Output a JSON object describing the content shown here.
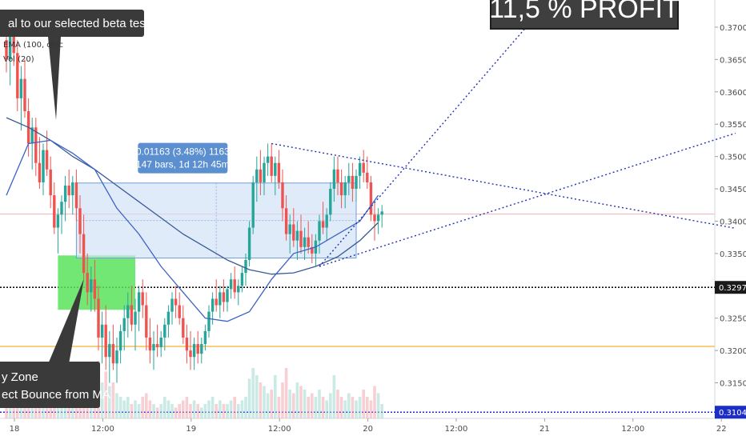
{
  "chart_data": {
    "type": "candlestick",
    "header": {
      "indicator_1": "EMA (100, ohlc",
      "indicator_2": "Vol (20)"
    },
    "y_axis": {
      "ylim": [
        0.3095,
        0.3742
      ],
      "ticks": [
        "0.37000",
        "0.36500",
        "0.36000",
        "0.35500",
        "0.35000",
        "0.34500",
        "0.34000",
        "0.33500",
        "0.32500",
        "0.32000",
        "0.31500"
      ],
      "price_labels": [
        {
          "value": 0.32976,
          "text": "0.32976"
        },
        {
          "value": 0.31046,
          "text": "0.31046"
        }
      ]
    },
    "x_axis": {
      "ticks": [
        "18",
        "12:00",
        "19",
        "12:00",
        "20",
        "12:00",
        "21",
        "12:00",
        "22"
      ],
      "tick_bars": [
        0,
        24,
        48,
        72,
        96,
        120,
        144,
        168,
        192
      ]
    },
    "horizontal_levels": [
      {
        "value": 0.32976,
        "style": "dotted",
        "color": "#111111"
      },
      {
        "value": 0.32063,
        "style": "solid",
        "color": "#f5b335"
      },
      {
        "value": 0.31046,
        "style": "dotted",
        "color": "#1c2ec8"
      },
      {
        "value": 0.3411,
        "style": "solid",
        "color": "#f4b8bf"
      }
    ],
    "measure_box": {
      "line1": "0.01163 (3.48%) 1163",
      "line2": "147 bars, 1d 12h 45m",
      "from_price": 0.3343,
      "to_price": 0.3459,
      "from_bar": 19,
      "to_bar": 95
    },
    "buy_zone": {
      "from_price": 0.3263,
      "to_price": 0.3347,
      "from_bar": 14,
      "to_bar": 35
    },
    "callouts": [
      {
        "text": "al to our selected beta testers",
        "style": "dark"
      },
      {
        "text_1": "y Zone",
        "text_2": "ect Bounce from MA",
        "style": "dark"
      },
      {
        "text": "11,5 % PROFIT",
        "style": "dark-large"
      }
    ],
    "trendlines": [
      {
        "p1": [
          72,
          0.352
        ],
        "p2": [
          198,
          0.3389
        ],
        "color": "#2333b4"
      },
      {
        "p1": [
          85,
          0.333
        ],
        "p2": [
          198,
          0.3536
        ],
        "color": "#2333b4"
      },
      {
        "p1": [
          85,
          0.333
        ],
        "p2": [
          148,
          0.3745
        ],
        "color": "#2333b4"
      }
    ],
    "ohlc": [
      [
        0.368,
        0.371,
        0.363,
        0.365
      ],
      [
        0.365,
        0.37,
        0.361,
        0.369
      ],
      [
        0.369,
        0.372,
        0.364,
        0.366
      ],
      [
        0.366,
        0.368,
        0.357,
        0.359
      ],
      [
        0.359,
        0.364,
        0.354,
        0.362
      ],
      [
        0.362,
        0.365,
        0.356,
        0.357
      ],
      [
        0.357,
        0.359,
        0.35,
        0.352
      ],
      [
        0.352,
        0.356,
        0.348,
        0.3545
      ],
      [
        0.3545,
        0.356,
        0.347,
        0.349
      ],
      [
        0.349,
        0.353,
        0.345,
        0.346
      ],
      [
        0.346,
        0.352,
        0.344,
        0.351
      ],
      [
        0.351,
        0.354,
        0.347,
        0.348
      ],
      [
        0.348,
        0.35,
        0.342,
        0.344
      ],
      [
        0.344,
        0.346,
        0.338,
        0.339
      ],
      [
        0.339,
        0.342,
        0.335,
        0.341
      ],
      [
        0.341,
        0.344,
        0.338,
        0.343
      ],
      [
        0.343,
        0.347,
        0.34,
        0.3455
      ],
      [
        0.3455,
        0.348,
        0.342,
        0.344
      ],
      [
        0.344,
        0.347,
        0.341,
        0.346
      ],
      [
        0.346,
        0.348,
        0.34,
        0.342
      ],
      [
        0.342,
        0.344,
        0.335,
        0.338
      ],
      [
        0.338,
        0.341,
        0.331,
        0.332
      ],
      [
        0.332,
        0.335,
        0.327,
        0.329
      ],
      [
        0.329,
        0.333,
        0.326,
        0.331
      ],
      [
        0.331,
        0.334,
        0.326,
        0.328
      ],
      [
        0.328,
        0.33,
        0.32,
        0.322
      ],
      [
        0.322,
        0.326,
        0.318,
        0.324
      ],
      [
        0.324,
        0.327,
        0.317,
        0.319
      ],
      [
        0.319,
        0.323,
        0.315,
        0.321
      ],
      [
        0.321,
        0.324,
        0.317,
        0.318
      ],
      [
        0.318,
        0.322,
        0.315,
        0.32
      ],
      [
        0.32,
        0.324,
        0.318,
        0.323
      ],
      [
        0.323,
        0.327,
        0.32,
        0.325
      ],
      [
        0.325,
        0.329,
        0.322,
        0.327
      ],
      [
        0.327,
        0.33,
        0.323,
        0.324
      ],
      [
        0.324,
        0.328,
        0.32,
        0.326
      ],
      [
        0.326,
        0.33,
        0.323,
        0.329
      ],
      [
        0.329,
        0.331,
        0.325,
        0.327
      ],
      [
        0.327,
        0.329,
        0.32,
        0.322
      ],
      [
        0.322,
        0.325,
        0.318,
        0.32
      ],
      [
        0.32,
        0.323,
        0.317,
        0.321
      ],
      [
        0.321,
        0.324,
        0.319,
        0.3205
      ],
      [
        0.3205,
        0.323,
        0.319,
        0.322
      ],
      [
        0.322,
        0.325,
        0.32,
        0.324
      ],
      [
        0.324,
        0.327,
        0.322,
        0.326
      ],
      [
        0.326,
        0.329,
        0.324,
        0.328
      ],
      [
        0.328,
        0.33,
        0.325,
        0.327
      ],
      [
        0.327,
        0.329,
        0.324,
        0.325
      ],
      [
        0.325,
        0.327,
        0.321,
        0.322
      ],
      [
        0.322,
        0.324,
        0.318,
        0.32
      ],
      [
        0.32,
        0.323,
        0.317,
        0.319
      ],
      [
        0.319,
        0.322,
        0.317,
        0.321
      ],
      [
        0.321,
        0.323,
        0.318,
        0.3195
      ],
      [
        0.3195,
        0.322,
        0.318,
        0.321
      ],
      [
        0.321,
        0.324,
        0.32,
        0.323
      ],
      [
        0.323,
        0.327,
        0.322,
        0.326
      ],
      [
        0.326,
        0.329,
        0.324,
        0.328
      ],
      [
        0.328,
        0.331,
        0.326,
        0.327
      ],
      [
        0.327,
        0.33,
        0.325,
        0.329
      ],
      [
        0.329,
        0.331,
        0.326,
        0.3275
      ],
      [
        0.3275,
        0.33,
        0.326,
        0.3295
      ],
      [
        0.3295,
        0.332,
        0.328,
        0.331
      ],
      [
        0.331,
        0.333,
        0.328,
        0.329
      ],
      [
        0.329,
        0.331,
        0.327,
        0.33
      ],
      [
        0.33,
        0.333,
        0.329,
        0.332
      ],
      [
        0.332,
        0.335,
        0.33,
        0.334
      ],
      [
        0.334,
        0.34,
        0.333,
        0.339
      ],
      [
        0.339,
        0.347,
        0.338,
        0.346
      ],
      [
        0.346,
        0.35,
        0.343,
        0.348
      ],
      [
        0.348,
        0.351,
        0.344,
        0.346
      ],
      [
        0.346,
        0.35,
        0.344,
        0.349
      ],
      [
        0.349,
        0.352,
        0.347,
        0.35
      ],
      [
        0.35,
        0.352,
        0.346,
        0.347
      ],
      [
        0.347,
        0.35,
        0.344,
        0.349
      ],
      [
        0.349,
        0.351,
        0.345,
        0.346
      ],
      [
        0.346,
        0.348,
        0.34,
        0.342
      ],
      [
        0.342,
        0.344,
        0.337,
        0.338
      ],
      [
        0.338,
        0.341,
        0.335,
        0.3395
      ],
      [
        0.3395,
        0.342,
        0.336,
        0.337
      ],
      [
        0.337,
        0.34,
        0.334,
        0.3385
      ],
      [
        0.3385,
        0.341,
        0.335,
        0.336
      ],
      [
        0.336,
        0.339,
        0.334,
        0.3375
      ],
      [
        0.3375,
        0.34,
        0.335,
        0.336
      ],
      [
        0.336,
        0.338,
        0.3335,
        0.335
      ],
      [
        0.335,
        0.338,
        0.333,
        0.337
      ],
      [
        0.337,
        0.341,
        0.335,
        0.34
      ],
      [
        0.34,
        0.343,
        0.338,
        0.339
      ],
      [
        0.339,
        0.342,
        0.337,
        0.341
      ],
      [
        0.341,
        0.346,
        0.34,
        0.345
      ],
      [
        0.345,
        0.35,
        0.343,
        0.348
      ],
      [
        0.348,
        0.35,
        0.344,
        0.346
      ],
      [
        0.346,
        0.348,
        0.342,
        0.344
      ],
      [
        0.344,
        0.347,
        0.342,
        0.346
      ],
      [
        0.346,
        0.349,
        0.344,
        0.347
      ],
      [
        0.347,
        0.349,
        0.343,
        0.345
      ],
      [
        0.345,
        0.348,
        0.343,
        0.347
      ],
      [
        0.347,
        0.35,
        0.345,
        0.349
      ],
      [
        0.349,
        0.351,
        0.346,
        0.3475
      ],
      [
        0.3475,
        0.35,
        0.345,
        0.346
      ],
      [
        0.346,
        0.347,
        0.34,
        0.341
      ],
      [
        0.341,
        0.343,
        0.337,
        0.34
      ],
      [
        0.34,
        0.342,
        0.338,
        0.341
      ],
      [
        0.341,
        0.3425,
        0.339,
        0.3415
      ]
    ],
    "ema_100": [
      [
        0,
        0.356
      ],
      [
        6,
        0.3545
      ],
      [
        12,
        0.3525
      ],
      [
        18,
        0.35
      ],
      [
        24,
        0.348
      ],
      [
        30,
        0.3455
      ],
      [
        36,
        0.343
      ],
      [
        42,
        0.3405
      ],
      [
        48,
        0.338
      ],
      [
        54,
        0.336
      ],
      [
        60,
        0.334
      ],
      [
        66,
        0.3325
      ],
      [
        72,
        0.3318
      ],
      [
        78,
        0.332
      ],
      [
        84,
        0.333
      ],
      [
        90,
        0.3345
      ],
      [
        96,
        0.337
      ],
      [
        101,
        0.3398
      ]
    ],
    "ma_2": [
      [
        0,
        0.344
      ],
      [
        6,
        0.352
      ],
      [
        12,
        0.3525
      ],
      [
        18,
        0.3505
      ],
      [
        24,
        0.348
      ],
      [
        30,
        0.342
      ],
      [
        36,
        0.338
      ],
      [
        42,
        0.333
      ],
      [
        48,
        0.329
      ],
      [
        54,
        0.325
      ],
      [
        60,
        0.3245
      ],
      [
        66,
        0.326
      ],
      [
        72,
        0.331
      ],
      [
        78,
        0.335
      ],
      [
        84,
        0.336
      ],
      [
        90,
        0.338
      ],
      [
        96,
        0.34
      ],
      [
        101,
        0.344
      ]
    ],
    "volume": [
      0.25,
      0.3,
      0.2,
      0.5,
      0.4,
      0.3,
      0.6,
      0.4,
      0.3,
      0.2,
      0.35,
      0.25,
      0.5,
      0.45,
      0.3,
      0.4,
      0.2,
      0.3,
      0.25,
      0.35,
      0.5,
      0.6,
      0.7,
      0.4,
      0.55,
      0.8,
      0.5,
      0.65,
      0.45,
      0.5,
      0.35,
      0.3,
      0.25,
      0.3,
      0.2,
      0.25,
      0.2,
      0.3,
      0.35,
      0.25,
      0.2,
      0.15,
      0.2,
      0.3,
      0.25,
      0.2,
      0.15,
      0.2,
      0.25,
      0.3,
      0.2,
      0.25,
      0.2,
      0.15,
      0.2,
      0.25,
      0.3,
      0.2,
      0.25,
      0.2,
      0.2,
      0.25,
      0.3,
      0.2,
      0.25,
      0.3,
      0.55,
      0.7,
      0.6,
      0.5,
      0.45,
      0.35,
      0.4,
      0.6,
      0.3,
      0.5,
      0.7,
      0.4,
      0.35,
      0.5,
      0.45,
      0.4,
      0.3,
      0.35,
      0.3,
      0.4,
      0.3,
      0.25,
      0.35,
      0.6,
      0.4,
      0.3,
      0.25,
      0.35,
      0.3,
      0.25,
      0.3,
      0.4,
      0.3,
      0.25,
      0.45,
      0.35,
      0.2
    ]
  }
}
